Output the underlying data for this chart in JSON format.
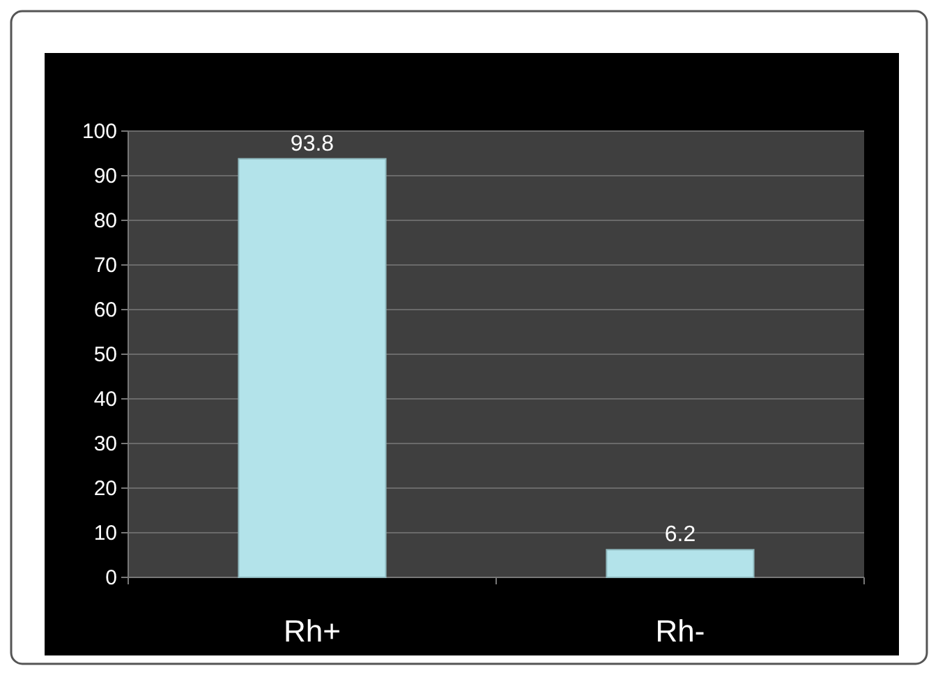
{
  "chart_data": {
    "type": "bar",
    "categories": [
      "Rh+",
      "Rh-"
    ],
    "values": [
      93.8,
      6.2
    ],
    "color": "#b3e3ea",
    "ylim": [
      0,
      100
    ],
    "yticks": [
      0,
      10,
      20,
      30,
      40,
      50,
      60,
      70,
      80,
      90,
      100
    ],
    "grid": "y",
    "data_labels": true
  }
}
